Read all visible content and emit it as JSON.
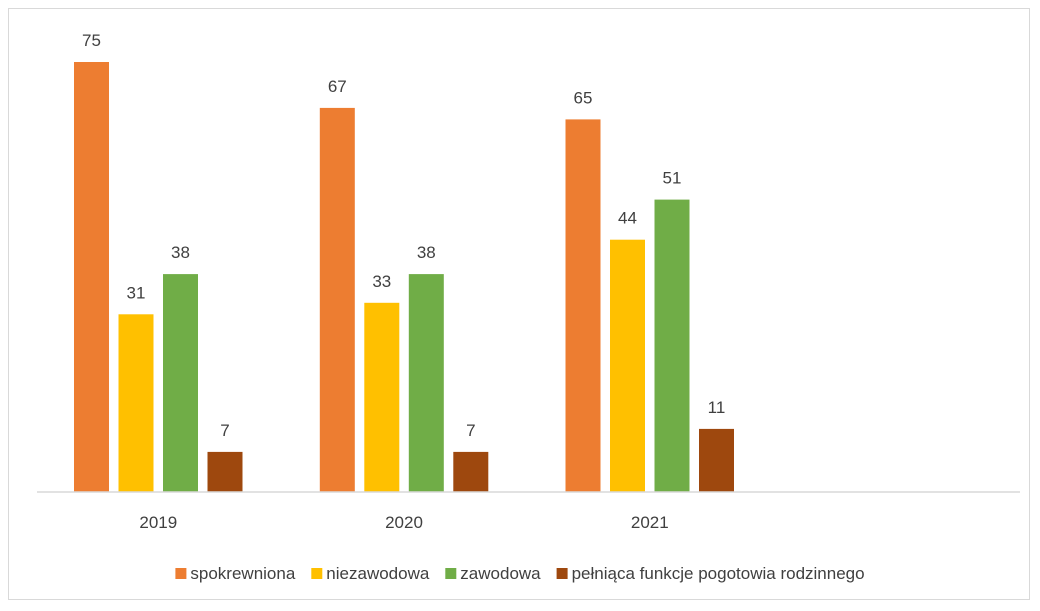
{
  "chart_data": {
    "type": "bar",
    "title": "",
    "xlabel": "",
    "ylabel": "",
    "categories": [
      "2019",
      "2020",
      "2021",
      ""
    ],
    "series": [
      {
        "name": "spokrewniona",
        "color": "#ED7D31",
        "values": [
          75,
          67,
          65,
          null
        ]
      },
      {
        "name": "niezawodowa",
        "color": "#FFC000",
        "values": [
          31,
          33,
          44,
          null
        ]
      },
      {
        "name": "zawodowa",
        "color": "#70AD47",
        "values": [
          38,
          38,
          51,
          null
        ]
      },
      {
        "name": "pełniąca funkcje pogotowia rodzinnego",
        "color": "#9E480E",
        "values": [
          7,
          7,
          11,
          null
        ]
      }
    ],
    "ylim": [
      0,
      80
    ],
    "grid": false,
    "data_labels": true,
    "legend_position": "bottom"
  }
}
